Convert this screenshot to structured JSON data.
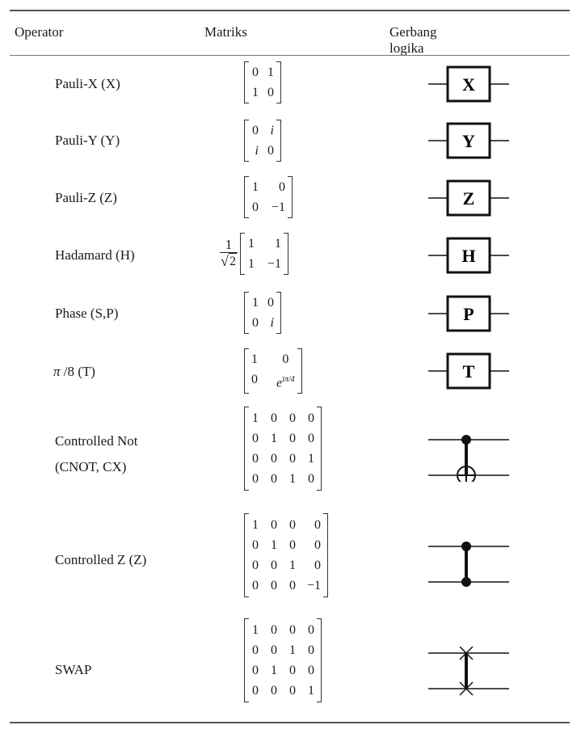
{
  "headers": {
    "operator": "Operator",
    "matrix": "Matriks",
    "gate": "Gerbang logika"
  },
  "rows": [
    {
      "label": [
        "Pauli-X (X)"
      ],
      "matrix": [
        [
          "0",
          "1"
        ],
        [
          "1",
          "0"
        ]
      ],
      "gate": "X",
      "gate_type": "box"
    },
    {
      "label": [
        "Pauli-Y (Y)"
      ],
      "matrix": [
        [
          "0",
          "i"
        ],
        [
          "i",
          "0"
        ]
      ],
      "gate": "Y",
      "gate_type": "box"
    },
    {
      "label": [
        "Pauli-Z (Z)"
      ],
      "matrix": [
        [
          "1",
          "0"
        ],
        [
          "0",
          "−1"
        ]
      ],
      "gate": "Z",
      "gate_type": "box"
    },
    {
      "label": [
        "Hadamard (H)"
      ],
      "prefactor": {
        "num": "1",
        "root": "√",
        "radicand": "2"
      },
      "matrix": [
        [
          "1",
          "1"
        ],
        [
          "1",
          "−1"
        ]
      ],
      "gate": "H",
      "gate_type": "box"
    },
    {
      "label": [
        "Phase (S,P)"
      ],
      "matrix": [
        [
          "1",
          "0"
        ],
        [
          "0",
          "i"
        ]
      ],
      "gate": "P",
      "gate_type": "box"
    },
    {
      "label_pi": "π",
      "label_rest": "/8 (T)",
      "matrix": [
        [
          "1",
          "0"
        ],
        [
          "0",
          "e^iπ/4"
        ]
      ],
      "gate": "T",
      "gate_type": "box"
    },
    {
      "label": [
        "Controlled Not",
        "(CNOT, CX)"
      ],
      "matrix": [
        [
          "1",
          "0",
          "0",
          "0"
        ],
        [
          "0",
          "1",
          "0",
          "0"
        ],
        [
          "0",
          "0",
          "0",
          "1"
        ],
        [
          "0",
          "0",
          "1",
          "0"
        ]
      ],
      "gate_type": "cnot",
      "gate_icon": "cnot-icon"
    },
    {
      "label": [
        "Controlled Z (Z)"
      ],
      "matrix": [
        [
          "1",
          "0",
          "0",
          "0"
        ],
        [
          "0",
          "1",
          "0",
          "0"
        ],
        [
          "0",
          "0",
          "1",
          "0"
        ],
        [
          "0",
          "0",
          "0",
          "−1"
        ]
      ],
      "gate_type": "cz",
      "gate_icon": "controlled-z-icon"
    },
    {
      "label": [
        "SWAP"
      ],
      "matrix": [
        [
          "1",
          "0",
          "0",
          "0"
        ],
        [
          "0",
          "0",
          "1",
          "0"
        ],
        [
          "0",
          "1",
          "0",
          "0"
        ],
        [
          "0",
          "0",
          "0",
          "1"
        ]
      ],
      "gate_type": "swap",
      "gate_icon": "swap-icon"
    }
  ]
}
